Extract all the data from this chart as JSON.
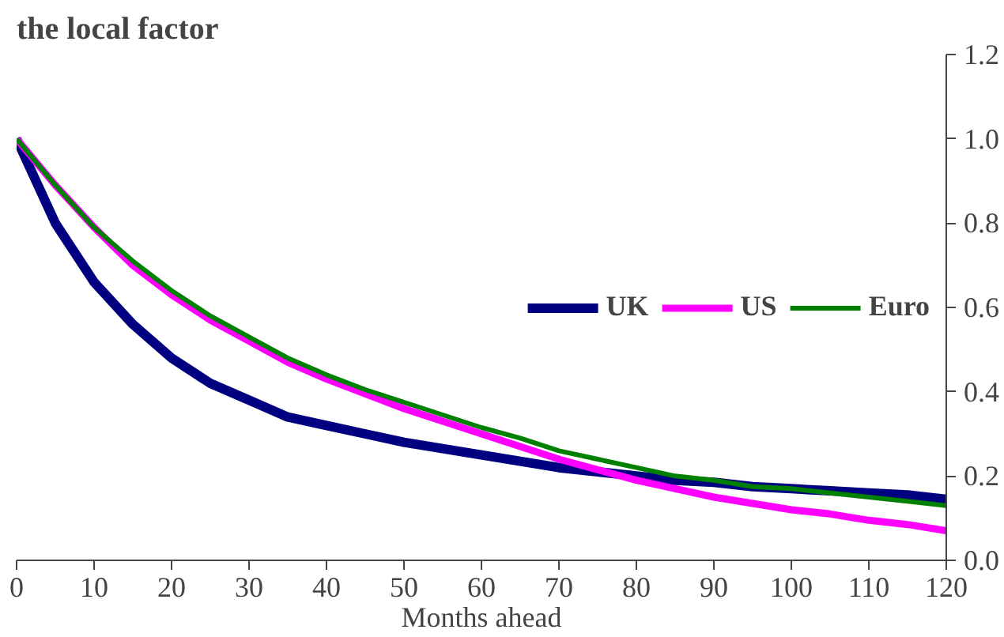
{
  "chart_data": {
    "type": "line",
    "title": "the local factor",
    "xlabel": "Months ahead",
    "x": [
      0,
      5,
      10,
      15,
      20,
      25,
      30,
      35,
      40,
      45,
      50,
      55,
      60,
      65,
      70,
      75,
      80,
      85,
      90,
      95,
      100,
      105,
      110,
      115,
      120
    ],
    "series": [
      {
        "name": "UK",
        "color": "#000080",
        "values": [
          1.0,
          0.8,
          0.66,
          0.56,
          0.48,
          0.42,
          0.38,
          0.34,
          0.32,
          0.3,
          0.28,
          0.265,
          0.25,
          0.235,
          0.22,
          0.21,
          0.2,
          0.19,
          0.185,
          0.175,
          0.17,
          0.165,
          0.16,
          0.155,
          0.145
        ]
      },
      {
        "name": "US",
        "color": "#ff00ff",
        "values": [
          1.0,
          0.89,
          0.79,
          0.7,
          0.63,
          0.57,
          0.52,
          0.47,
          0.43,
          0.395,
          0.36,
          0.33,
          0.3,
          0.27,
          0.24,
          0.215,
          0.19,
          0.17,
          0.15,
          0.135,
          0.12,
          0.11,
          0.095,
          0.085,
          0.07
        ]
      },
      {
        "name": "Euro",
        "color": "#008000",
        "values": [
          1.0,
          0.89,
          0.79,
          0.71,
          0.64,
          0.58,
          0.53,
          0.48,
          0.44,
          0.405,
          0.375,
          0.345,
          0.315,
          0.29,
          0.26,
          0.24,
          0.22,
          0.2,
          0.19,
          0.175,
          0.17,
          0.16,
          0.15,
          0.14,
          0.13
        ]
      }
    ],
    "xlim": [
      0,
      120
    ],
    "xticks": [
      0,
      10,
      20,
      30,
      40,
      50,
      60,
      70,
      80,
      90,
      100,
      110,
      120
    ],
    "ylim": [
      0,
      1.2
    ],
    "yticks": [
      {
        "value": 0,
        "label": "0.0"
      },
      {
        "value": 0.2,
        "label": "0.2"
      },
      {
        "value": 0.4,
        "label": "0.4"
      },
      {
        "value": 0.6,
        "label": "0.6"
      },
      {
        "value": 0.8,
        "label": "0.8"
      },
      {
        "value": 1.0,
        "label": "1.0"
      },
      {
        "value": 1.2,
        "label": "1.2"
      }
    ],
    "grid": false,
    "legend": "right",
    "marker": "none",
    "line_style": "solid"
  }
}
